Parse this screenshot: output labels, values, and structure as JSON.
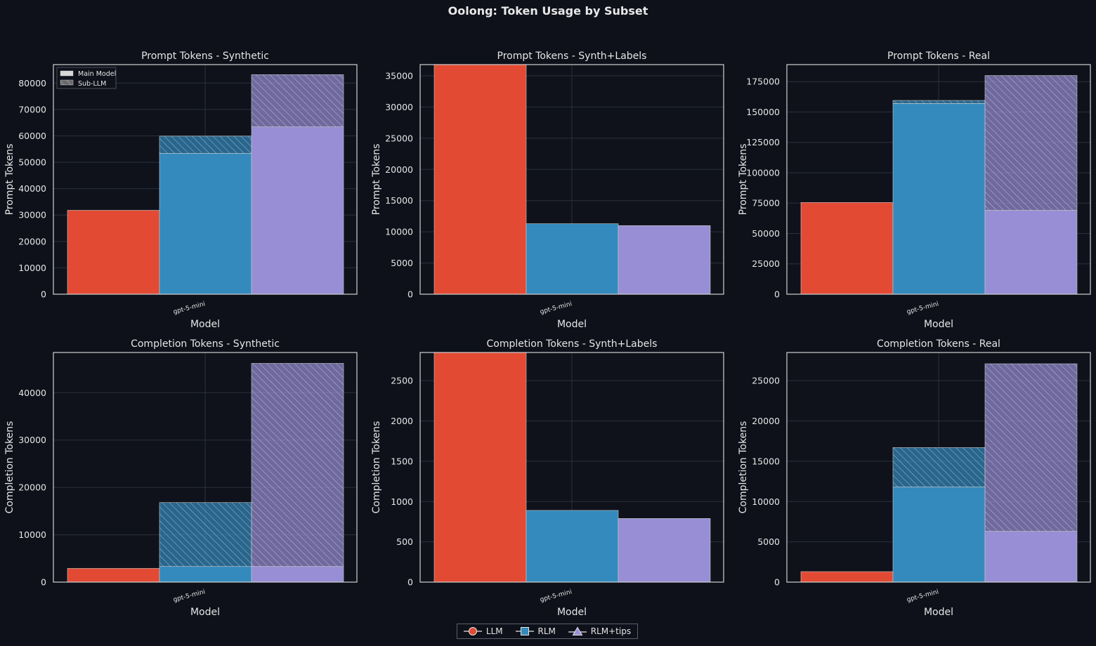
{
  "figure": {
    "title": "Oolong: Token Usage by Subset",
    "legend": [
      {
        "name": "LLM",
        "marker": "circle",
        "color": "#e24a33"
      },
      {
        "name": "RLM",
        "marker": "square",
        "color": "#348abd"
      },
      {
        "name": "RLM+tips",
        "marker": "triangle",
        "color": "#988ed5"
      }
    ],
    "inner_legend": [
      {
        "name": "Main Model",
        "style": "solid"
      },
      {
        "name": "Sub-LLM",
        "style": "hatched"
      }
    ]
  },
  "chart_data": [
    {
      "type": "bar",
      "title": "Prompt Tokens - Synthetic",
      "xlabel": "Model",
      "ylabel": "Prompt Tokens",
      "categories": [
        "gpt-5-mini"
      ],
      "ylim": [
        0,
        87000
      ],
      "yticks": [
        "0",
        "10000",
        "20000",
        "30000",
        "40000",
        "50000",
        "60000",
        "70000",
        "80000"
      ],
      "series": [
        {
          "name": "LLM",
          "main": 31800,
          "sub": 0
        },
        {
          "name": "RLM",
          "main": 53400,
          "sub": 6500
        },
        {
          "name": "RLM+tips",
          "main": 63400,
          "sub": 19800
        }
      ],
      "legend": true
    },
    {
      "type": "bar",
      "title": "Prompt Tokens - Synth+Labels",
      "xlabel": "Model",
      "ylabel": "Prompt Tokens",
      "categories": [
        "gpt-5-mini"
      ],
      "ylim": [
        0,
        36800
      ],
      "yticks": [
        "0",
        "5000",
        "10000",
        "15000",
        "20000",
        "25000",
        "30000",
        "35000"
      ],
      "series": [
        {
          "name": "LLM",
          "main": 36800,
          "sub": 0
        },
        {
          "name": "RLM",
          "main": 11300,
          "sub": 0
        },
        {
          "name": "RLM+tips",
          "main": 11000,
          "sub": 0
        }
      ],
      "legend": false
    },
    {
      "type": "bar",
      "title": "Prompt Tokens - Real",
      "xlabel": "Model",
      "ylabel": "Prompt Tokens",
      "categories": [
        "gpt-5-mini"
      ],
      "ylim": [
        0,
        189000
      ],
      "yticks": [
        "0",
        "25000",
        "50000",
        "75000",
        "100000",
        "125000",
        "150000",
        "175000"
      ],
      "series": [
        {
          "name": "LLM",
          "main": 75500,
          "sub": 0
        },
        {
          "name": "RLM",
          "main": 157000,
          "sub": 2500
        },
        {
          "name": "RLM+tips",
          "main": 69000,
          "sub": 111000
        }
      ],
      "legend": false
    },
    {
      "type": "bar",
      "title": "Completion Tokens - Synthetic",
      "xlabel": "Model",
      "ylabel": "Completion Tokens",
      "categories": [
        "gpt-5-mini"
      ],
      "ylim": [
        0,
        48500
      ],
      "yticks": [
        "0",
        "10000",
        "20000",
        "30000",
        "40000"
      ],
      "series": [
        {
          "name": "LLM",
          "main": 2900,
          "sub": 0
        },
        {
          "name": "RLM",
          "main": 3300,
          "sub": 13500
        },
        {
          "name": "RLM+tips",
          "main": 3300,
          "sub": 42900
        }
      ],
      "legend": false
    },
    {
      "type": "bar",
      "title": "Completion Tokens - Synth+Labels",
      "xlabel": "Model",
      "ylabel": "Completion Tokens",
      "categories": [
        "gpt-5-mini"
      ],
      "ylim": [
        0,
        2850
      ],
      "yticks": [
        "0",
        "500",
        "1000",
        "1500",
        "2000",
        "2500"
      ],
      "series": [
        {
          "name": "LLM",
          "main": 2850,
          "sub": 0
        },
        {
          "name": "RLM",
          "main": 890,
          "sub": 0
        },
        {
          "name": "RLM+tips",
          "main": 790,
          "sub": 0
        }
      ],
      "legend": false
    },
    {
      "type": "bar",
      "title": "Completion Tokens - Real",
      "xlabel": "Model",
      "ylabel": "Completion Tokens",
      "categories": [
        "gpt-5-mini"
      ],
      "ylim": [
        0,
        28500
      ],
      "yticks": [
        "0",
        "5000",
        "10000",
        "15000",
        "20000",
        "25000"
      ],
      "series": [
        {
          "name": "LLM",
          "main": 1300,
          "sub": 0
        },
        {
          "name": "RLM",
          "main": 11800,
          "sub": 4900
        },
        {
          "name": "RLM+tips",
          "main": 6300,
          "sub": 20800
        }
      ],
      "legend": false
    }
  ]
}
